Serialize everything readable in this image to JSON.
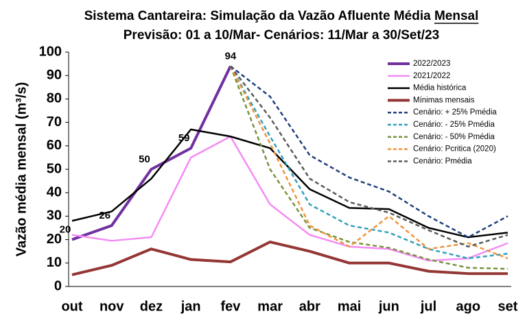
{
  "chart_data": {
    "type": "line",
    "title": "Sistema Cantareira: Simulação da Vazão Afluente Média Mensal",
    "title_underline": "Mensal",
    "subtitle": "Previsão: 01 a 10/Mar- Cenários: 11/Mar a 30/Set/23",
    "y_label": "Vazão média mensal (m³/s)",
    "categories": [
      "out",
      "nov",
      "dez",
      "jan",
      "fev",
      "mar",
      "abr",
      "mai",
      "jun",
      "jul",
      "ago",
      "set"
    ],
    "ylim": [
      0,
      100
    ],
    "yticks": [
      0,
      10,
      20,
      30,
      40,
      50,
      60,
      70,
      80,
      90,
      100
    ],
    "legend": "upper right",
    "series": [
      {
        "name": "2022/2023",
        "color": "#7030a0",
        "width": 4,
        "dash": false,
        "data_labels": true,
        "values": [
          20,
          26,
          50,
          59,
          94,
          null,
          null,
          null,
          null,
          null,
          null,
          null
        ]
      },
      {
        "name": "2021/2022",
        "color": "#f48cf4",
        "width": 2.5,
        "dash": false,
        "values": [
          22,
          19.5,
          21,
          55,
          64,
          35,
          22,
          17,
          16,
          11,
          12,
          18.5
        ]
      },
      {
        "name": "Média histórica",
        "color": "#000000",
        "width": 2.5,
        "dash": false,
        "values": [
          28,
          32,
          46,
          67,
          64,
          59,
          41.5,
          33.5,
          33,
          25,
          21,
          23
        ]
      },
      {
        "name": "Mínimas mensais",
        "color": "#943634",
        "width": 4,
        "dash": false,
        "values": [
          5,
          9,
          16,
          11.5,
          10.5,
          19,
          15,
          10,
          10,
          6.5,
          5.5,
          5.5
        ]
      },
      {
        "name": "Cenário: + 25% Pmédia",
        "color": "#1f3f7a",
        "width": 2.5,
        "dash": true,
        "values": [
          null,
          null,
          null,
          null,
          94,
          81,
          56,
          46.5,
          40.5,
          30,
          21,
          30
        ]
      },
      {
        "name": "Cenário: - 25% Pmédia",
        "color": "#31a0b8",
        "width": 2.5,
        "dash": true,
        "values": [
          null,
          null,
          null,
          null,
          94,
          64,
          35,
          26,
          23,
          16,
          12,
          14
        ]
      },
      {
        "name": "Cenário: - 50% Pmédia",
        "color": "#76923c",
        "width": 2.5,
        "dash": true,
        "values": [
          null,
          null,
          null,
          null,
          94,
          50,
          25,
          19,
          16.5,
          11.5,
          8,
          7.5
        ]
      },
      {
        "name": "Cenário: Pcritica (2020)",
        "color": "#f0923a",
        "width": 2.5,
        "dash": true,
        "values": [
          null,
          null,
          null,
          null,
          94,
          61,
          26,
          17,
          30,
          16,
          18.5,
          12
        ]
      },
      {
        "name": "Cenário: Pmédia",
        "color": "#595959",
        "width": 2.5,
        "dash": true,
        "values": [
          null,
          null,
          null,
          null,
          94,
          72,
          46,
          36,
          31.5,
          24,
          17,
          22
        ]
      }
    ]
  }
}
